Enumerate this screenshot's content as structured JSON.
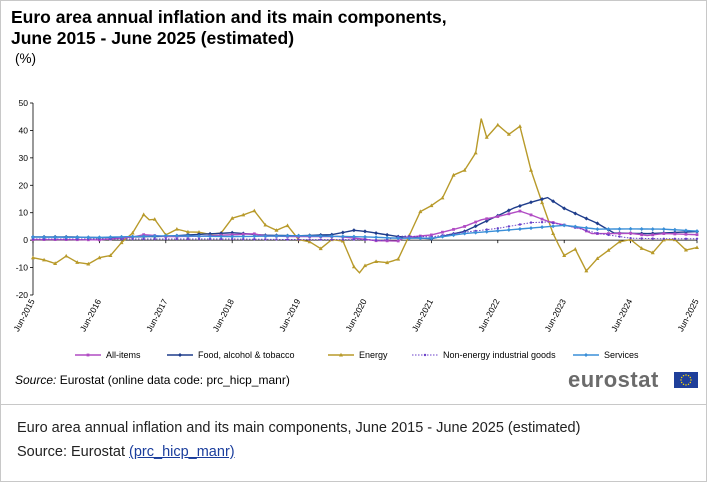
{
  "figure": {
    "title_line1": "Euro area annual inflation and its main components,",
    "title_line2": "June 2015 - June 2025 (estimated)",
    "unit": "(%)",
    "source_label": "Source:",
    "source_text": " Eurostat (online data code: prc_hicp_manr)",
    "logo_text": "eurostat"
  },
  "caption": {
    "text": "Euro area annual inflation and its main components, June 2015 - June 2025 (estimated)",
    "source_prefix": "Source: Eurostat ",
    "source_link": "(prc_hicp_manr)"
  },
  "colors": {
    "all_items": "#b14cc4",
    "food": "#1f3d8c",
    "energy": "#b89a2a",
    "non_energy": "#6a3fc8",
    "services": "#3a8fd8",
    "flag_blue": "#1f3f9a",
    "flag_stars": "#ffdd00"
  },
  "chart_data": {
    "type": "line",
    "x_start": "2015-06",
    "x_end": "2025-06",
    "x_tick_labels": [
      "Jun-2015",
      "Jun-2016",
      "Jun-2017",
      "Jun-2018",
      "Jun-2019",
      "Jun-2020",
      "Jun-2021",
      "Jun-2022",
      "Jun-2023",
      "Jun-2024",
      "Jun-2025"
    ],
    "y_ticks": [
      50,
      40,
      30,
      20,
      10,
      0,
      -10,
      -20
    ],
    "ylim": [
      -20,
      50
    ],
    "legend_position": "bottom",
    "grid": false,
    "series": [
      {
        "name": "All-items",
        "color_key": "all_items",
        "marker": "square",
        "points": [
          [
            "2015-06",
            0.2
          ],
          [
            "2015-12",
            0.2
          ],
          [
            "2016-06",
            0.1
          ],
          [
            "2016-12",
            1.1
          ],
          [
            "2017-02",
            2.0
          ],
          [
            "2017-06",
            1.3
          ],
          [
            "2017-12",
            1.4
          ],
          [
            "2018-06",
            2.0
          ],
          [
            "2018-10",
            2.3
          ],
          [
            "2018-12",
            1.5
          ],
          [
            "2019-06",
            1.3
          ],
          [
            "2019-12",
            1.3
          ],
          [
            "2020-01",
            1.4
          ],
          [
            "2020-06",
            0.3
          ],
          [
            "2020-08",
            -0.2
          ],
          [
            "2020-12",
            -0.3
          ],
          [
            "2021-01",
            0.9
          ],
          [
            "2021-06",
            1.9
          ],
          [
            "2021-09",
            3.4
          ],
          [
            "2021-12",
            5.0
          ],
          [
            "2022-03",
            7.4
          ],
          [
            "2022-06",
            8.6
          ],
          [
            "2022-10",
            10.6
          ],
          [
            "2022-12",
            9.2
          ],
          [
            "2023-03",
            6.9
          ],
          [
            "2023-06",
            5.5
          ],
          [
            "2023-09",
            4.3
          ],
          [
            "2023-11",
            2.4
          ],
          [
            "2024-03",
            2.4
          ],
          [
            "2024-06",
            2.5
          ],
          [
            "2024-09",
            1.7
          ],
          [
            "2024-12",
            2.4
          ],
          [
            "2025-03",
            2.2
          ],
          [
            "2025-06",
            2.0
          ]
        ]
      },
      {
        "name": "Food, alcohol & tobacco",
        "color_key": "food",
        "marker": "diamond",
        "points": [
          [
            "2015-06",
            1.2
          ],
          [
            "2015-12",
            1.2
          ],
          [
            "2016-06",
            0.9
          ],
          [
            "2016-12",
            1.2
          ],
          [
            "2017-06",
            1.4
          ],
          [
            "2017-12",
            2.1
          ],
          [
            "2018-06",
            2.7
          ],
          [
            "2018-12",
            1.8
          ],
          [
            "2019-06",
            1.6
          ],
          [
            "2019-12",
            2.0
          ],
          [
            "2020-04",
            3.6
          ],
          [
            "2020-06",
            3.2
          ],
          [
            "2020-12",
            1.3
          ],
          [
            "2021-06",
            0.5
          ],
          [
            "2021-12",
            3.2
          ],
          [
            "2022-06",
            8.9
          ],
          [
            "2022-09",
            11.8
          ],
          [
            "2022-12",
            13.8
          ],
          [
            "2023-03",
            15.5
          ],
          [
            "2023-06",
            11.6
          ],
          [
            "2023-09",
            8.8
          ],
          [
            "2023-12",
            6.1
          ],
          [
            "2024-03",
            2.6
          ],
          [
            "2024-06",
            2.5
          ],
          [
            "2024-09",
            2.4
          ],
          [
            "2024-12",
            2.6
          ],
          [
            "2025-03",
            2.9
          ],
          [
            "2025-06",
            3.1
          ]
        ]
      },
      {
        "name": "Energy",
        "color_key": "energy",
        "marker": "triangle",
        "points": [
          [
            "2015-06",
            -6.4
          ],
          [
            "2015-08",
            -7.2
          ],
          [
            "2015-10",
            -8.5
          ],
          [
            "2015-12",
            -5.8
          ],
          [
            "2016-02",
            -8.1
          ],
          [
            "2016-04",
            -8.7
          ],
          [
            "2016-06",
            -6.4
          ],
          [
            "2016-08",
            -5.6
          ],
          [
            "2016-10",
            -0.9
          ],
          [
            "2016-12",
            2.6
          ],
          [
            "2017-02",
            9.3
          ],
          [
            "2017-03",
            7.4
          ],
          [
            "2017-04",
            7.6
          ],
          [
            "2017-06",
            1.9
          ],
          [
            "2017-08",
            4.0
          ],
          [
            "2017-10",
            3.0
          ],
          [
            "2017-12",
            2.9
          ],
          [
            "2018-02",
            2.1
          ],
          [
            "2018-04",
            2.6
          ],
          [
            "2018-06",
            8.0
          ],
          [
            "2018-08",
            9.2
          ],
          [
            "2018-10",
            10.7
          ],
          [
            "2018-12",
            5.5
          ],
          [
            "2019-02",
            3.6
          ],
          [
            "2019-04",
            5.3
          ],
          [
            "2019-06",
            0.2
          ],
          [
            "2019-08",
            -0.6
          ],
          [
            "2019-10",
            -3.1
          ],
          [
            "2019-12",
            0.2
          ],
          [
            "2020-02",
            -0.3
          ],
          [
            "2020-04",
            -9.7
          ],
          [
            "2020-05",
            -11.9
          ],
          [
            "2020-06",
            -9.3
          ],
          [
            "2020-08",
            -7.8
          ],
          [
            "2020-10",
            -8.2
          ],
          [
            "2020-12",
            -6.9
          ],
          [
            "2021-02",
            1.7
          ],
          [
            "2021-04",
            10.4
          ],
          [
            "2021-06",
            12.6
          ],
          [
            "2021-08",
            15.4
          ],
          [
            "2021-10",
            23.7
          ],
          [
            "2021-12",
            25.5
          ],
          [
            "2022-02",
            31.8
          ],
          [
            "2022-03",
            44.3
          ],
          [
            "2022-04",
            37.5
          ],
          [
            "2022-06",
            42.0
          ],
          [
            "2022-08",
            38.6
          ],
          [
            "2022-10",
            41.5
          ],
          [
            "2022-12",
            25.5
          ],
          [
            "2023-02",
            13.7
          ],
          [
            "2023-04",
            2.4
          ],
          [
            "2023-05",
            -1.8
          ],
          [
            "2023-06",
            -5.6
          ],
          [
            "2023-08",
            -3.3
          ],
          [
            "2023-10",
            -11.2
          ],
          [
            "2023-12",
            -6.7
          ],
          [
            "2024-02",
            -3.7
          ],
          [
            "2024-04",
            -0.6
          ],
          [
            "2024-06",
            0.2
          ],
          [
            "2024-08",
            -3.0
          ],
          [
            "2024-10",
            -4.6
          ],
          [
            "2024-12",
            0.1
          ],
          [
            "2025-02",
            0.2
          ],
          [
            "2025-04",
            -3.6
          ],
          [
            "2025-06",
            -2.7
          ]
        ]
      },
      {
        "name": "Non-energy industrial goods",
        "color_key": "non_energy",
        "marker": "dot",
        "points": [
          [
            "2015-06",
            0.4
          ],
          [
            "2016-06",
            0.4
          ],
          [
            "2017-06",
            0.4
          ],
          [
            "2018-06",
            0.4
          ],
          [
            "2019-06",
            0.2
          ],
          [
            "2020-06",
            0.2
          ],
          [
            "2020-09",
            -0.1
          ],
          [
            "2021-01",
            1.5
          ],
          [
            "2021-06",
            1.2
          ],
          [
            "2021-12",
            2.9
          ],
          [
            "2022-06",
            4.3
          ],
          [
            "2022-12",
            6.4
          ],
          [
            "2023-03",
            6.6
          ],
          [
            "2023-06",
            5.5
          ],
          [
            "2023-09",
            4.1
          ],
          [
            "2023-12",
            2.5
          ],
          [
            "2024-06",
            0.7
          ],
          [
            "2024-12",
            0.5
          ],
          [
            "2025-06",
            0.5
          ]
        ]
      },
      {
        "name": "Services",
        "color_key": "services",
        "marker": "diamond",
        "points": [
          [
            "2015-06",
            1.1
          ],
          [
            "2016-06",
            1.0
          ],
          [
            "2017-06",
            1.6
          ],
          [
            "2018-06",
            1.3
          ],
          [
            "2019-06",
            1.6
          ],
          [
            "2020-06",
            1.2
          ],
          [
            "2020-12",
            0.7
          ],
          [
            "2021-06",
            0.7
          ],
          [
            "2021-12",
            2.4
          ],
          [
            "2022-06",
            3.4
          ],
          [
            "2022-12",
            4.4
          ],
          [
            "2023-06",
            5.4
          ],
          [
            "2023-12",
            4.0
          ],
          [
            "2024-06",
            4.1
          ],
          [
            "2024-12",
            4.0
          ],
          [
            "2025-06",
            3.3
          ]
        ]
      }
    ]
  }
}
